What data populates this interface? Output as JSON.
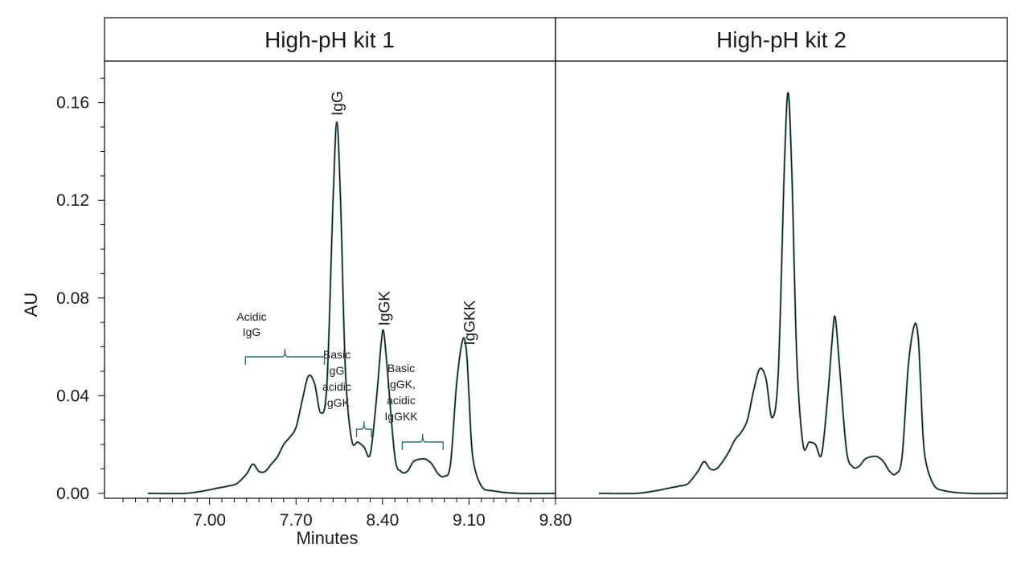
{
  "colors": {
    "trace_dark": "#111111",
    "trace_teal": "#3f7f80",
    "bracket": "#2f6f73",
    "frame": "#000000"
  },
  "chart_data": {
    "type": "line",
    "panels": [
      {
        "title": "High-pH kit 1",
        "peak_labels": [
          {
            "text": "IgG",
            "x": 8.03
          },
          {
            "text": "IgGK",
            "x": 8.41
          },
          {
            "text": "IgGKK",
            "x": 9.1
          }
        ],
        "region_labels": [
          {
            "lines": [
              "Acidic",
              "IgG"
            ],
            "x_from": 7.29,
            "x_to": 7.93
          },
          {
            "lines": [
              "Basic",
              "IgG,",
              "acidic",
              "IgGK"
            ],
            "x_from": 8.19,
            "x_to": 8.31
          },
          {
            "lines": [
              "Basic",
              "IgGK,",
              "acidic",
              "IgGKK"
            ],
            "x_from": 8.56,
            "x_to": 8.89
          }
        ],
        "series": [
          {
            "x": [
              6.5,
              6.8,
              6.95,
              7.05,
              7.15,
              7.22,
              7.3,
              7.35,
              7.4,
              7.45,
              7.5,
              7.55,
              7.6,
              7.65,
              7.7,
              7.75,
              7.8,
              7.85,
              7.9,
              7.95,
              8.0,
              8.03,
              8.06,
              8.1,
              8.15,
              8.2,
              8.25,
              8.3,
              8.35,
              8.39,
              8.41,
              8.44,
              8.5,
              8.55,
              8.6,
              8.65,
              8.7,
              8.75,
              8.8,
              8.85,
              8.9,
              8.95,
              9.0,
              9.05,
              9.08,
              9.1,
              9.13,
              9.2,
              9.3,
              9.5,
              9.8
            ],
            "y": [
              0.0,
              0.0,
              0.001,
              0.002,
              0.003,
              0.004,
              0.008,
              0.012,
              0.009,
              0.009,
              0.012,
              0.015,
              0.02,
              0.023,
              0.027,
              0.038,
              0.048,
              0.045,
              0.033,
              0.045,
              0.12,
              0.152,
              0.12,
              0.05,
              0.022,
              0.021,
              0.019,
              0.016,
              0.038,
              0.062,
              0.066,
              0.05,
              0.015,
              0.009,
              0.009,
              0.013,
              0.014,
              0.014,
              0.012,
              0.008,
              0.007,
              0.012,
              0.045,
              0.063,
              0.058,
              0.04,
              0.015,
              0.003,
              0.001,
              0.0,
              0.0
            ]
          }
        ]
      },
      {
        "title": "High-pH kit 2",
        "series": [
          {
            "x": [
              6.5,
              6.8,
              6.95,
              7.05,
              7.15,
              7.22,
              7.3,
              7.35,
              7.4,
              7.45,
              7.5,
              7.55,
              7.6,
              7.65,
              7.7,
              7.75,
              7.8,
              7.85,
              7.9,
              7.95,
              8.0,
              8.03,
              8.06,
              8.1,
              8.15,
              8.2,
              8.25,
              8.3,
              8.35,
              8.39,
              8.41,
              8.44,
              8.5,
              8.55,
              8.6,
              8.65,
              8.7,
              8.75,
              8.8,
              8.85,
              8.9,
              8.95,
              9.0,
              9.05,
              9.08,
              9.1,
              9.13,
              9.2,
              9.3,
              9.5,
              9.8
            ],
            "y": [
              0.0,
              0.0,
              0.001,
              0.002,
              0.003,
              0.004,
              0.009,
              0.013,
              0.01,
              0.01,
              0.013,
              0.017,
              0.022,
              0.025,
              0.03,
              0.042,
              0.051,
              0.047,
              0.031,
              0.05,
              0.135,
              0.164,
              0.13,
              0.055,
              0.02,
              0.021,
              0.02,
              0.016,
              0.04,
              0.066,
              0.072,
              0.055,
              0.018,
              0.011,
              0.011,
              0.014,
              0.015,
              0.015,
              0.013,
              0.009,
              0.008,
              0.015,
              0.052,
              0.069,
              0.064,
              0.045,
              0.017,
              0.004,
              0.001,
              0.0,
              0.0
            ]
          }
        ]
      }
    ],
    "xlabel": "Minutes",
    "ylabel": "AU",
    "x_ticks": [
      "7.00",
      "7.70",
      "8.40",
      "9.10",
      "9.80"
    ],
    "y_ticks": [
      "0.00",
      "0.04",
      "0.08",
      "0.12",
      "0.16"
    ],
    "xlim": [
      6.15,
      9.8
    ],
    "ylim": [
      -0.002,
      0.177
    ],
    "grid": false
  }
}
